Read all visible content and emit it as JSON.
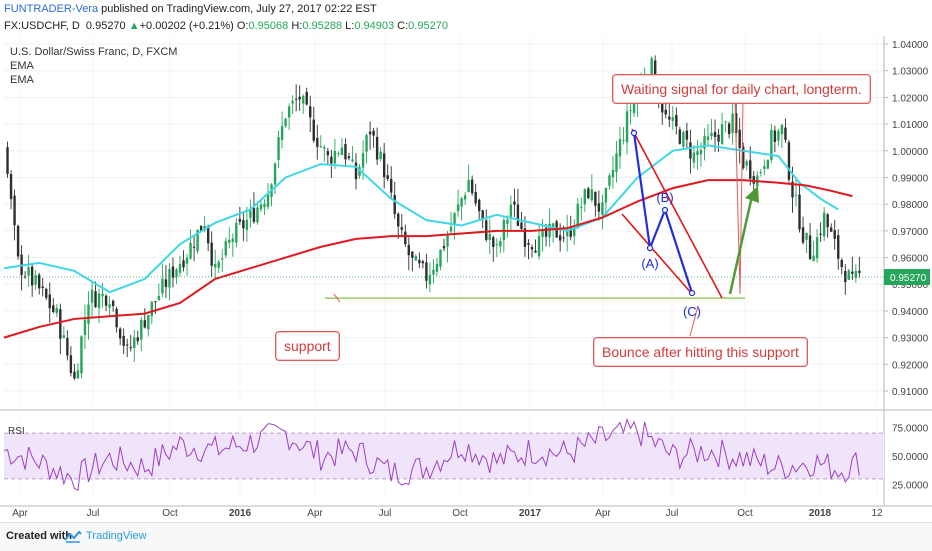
{
  "header": {
    "author": "FUNTRADER-Vera",
    "published": " published on TradingView.com, July 27, 2017 02:22 EST",
    "symbol": "FX:USDCHF, D",
    "last": "0.95270",
    "arrow": "▲",
    "change": "+0.00202 (+0.21%)",
    "o_label": "O:",
    "o_value": "0.95068",
    "h_label": "H:",
    "h_value": "0.95288",
    "l_label": "L:",
    "l_value": "0.94903",
    "c_label": "C:",
    "c_value": "0.95270"
  },
  "legend": {
    "title": "U.S. Dollar/Swiss Franc, D, FXCM",
    "ema1": "EMA",
    "ema2": "EMA",
    "rsi": "RSI"
  },
  "annotations": {
    "signal": "Waiting signal for daily chart, longterm.",
    "support": "support",
    "bounce": "Bounce after hitting this support",
    "wave_a": "(A)",
    "wave_b": "(B)",
    "wave_c": "(C)"
  },
  "colors": {
    "candle_up": "#26a65b",
    "candle_down": "#2e2e2e",
    "ema_fast": "#3fd7e6",
    "ema_slow": "#e0191f",
    "support_line": "#9ccc65",
    "wave": "#1f2ed8",
    "arrow": "#4f9a36",
    "rsi_line": "#9c3fc4",
    "rsi_band": "#f0e4fa"
  },
  "chart_data": [
    {
      "type": "candlestick",
      "title": "U.S. Dollar/Swiss Franc, D, FXCM",
      "x_ticks": [
        "Apr",
        "Jul",
        "Oct",
        "2016",
        "Apr",
        "Jul",
        "Oct",
        "2017",
        "Apr",
        "Jul",
        "Oct",
        "2018",
        "12"
      ],
      "y_ticks": [
        "0.91000",
        "0.92000",
        "0.93000",
        "0.94000",
        "0.95000",
        "0.96000",
        "0.97000",
        "0.98000",
        "0.99000",
        "1.00000",
        "1.01000",
        "1.02000",
        "1.03000",
        "1.04000"
      ],
      "ylim": [
        0.905,
        1.041
      ],
      "last_price": "0.95270",
      "close_path": [
        [
          0,
          1.002
        ],
        [
          4,
          0.958
        ],
        [
          10,
          0.948
        ],
        [
          15,
          0.938
        ],
        [
          20,
          0.914
        ],
        [
          24,
          0.945
        ],
        [
          30,
          0.946
        ],
        [
          35,
          0.924
        ],
        [
          40,
          0.937
        ],
        [
          43,
          0.944
        ],
        [
          48,
          0.955
        ],
        [
          52,
          0.962
        ],
        [
          57,
          0.974
        ],
        [
          60,
          0.954
        ],
        [
          65,
          0.968
        ],
        [
          70,
          0.975
        ],
        [
          75,
          0.985
        ],
        [
          80,
          1.014
        ],
        [
          84,
          1.02
        ],
        [
          88,
          1.007
        ],
        [
          92,
          0.997
        ],
        [
          96,
          1.002
        ],
        [
          100,
          0.99
        ],
        [
          104,
          1.008
        ],
        [
          108,
          0.993
        ],
        [
          112,
          0.97
        ],
        [
          116,
          0.958
        ],
        [
          120,
          0.953
        ],
        [
          124,
          0.962
        ],
        [
          128,
          0.975
        ],
        [
          132,
          0.989
        ],
        [
          136,
          0.972
        ],
        [
          140,
          0.962
        ],
        [
          144,
          0.98
        ],
        [
          148,
          0.968
        ],
        [
          152,
          0.965
        ],
        [
          156,
          0.97
        ],
        [
          160,
          0.968
        ],
        [
          163,
          0.977
        ],
        [
          166,
          0.985
        ],
        [
          170,
          0.977
        ],
        [
          174,
          0.998
        ],
        [
          178,
          1.016
        ],
        [
          182,
          1.028
        ],
        [
          184,
          1.031
        ],
        [
          188,
          1.012
        ],
        [
          192,
          1.006
        ],
        [
          196,
          0.998
        ],
        [
          200,
          1.003
        ],
        [
          204,
          1.008
        ],
        [
          207,
          1.01
        ],
        [
          210,
          0.996
        ],
        [
          214,
          0.99
        ],
        [
          218,
          1.004
        ],
        [
          221,
          1.008
        ],
        [
          224,
          0.985
        ],
        [
          227,
          0.969
        ],
        [
          229,
          0.962
        ],
        [
          231,
          0.967
        ],
        [
          233,
          0.975
        ],
        [
          235,
          0.968
        ],
        [
          238,
          0.957
        ],
        [
          241,
          0.95
        ],
        [
          243,
          0.953
        ]
      ],
      "series": [
        {
          "name": "EMA",
          "points": [
            [
              0,
              0.956
            ],
            [
              10,
              0.958
            ],
            [
              20,
              0.955
            ],
            [
              30,
              0.947
            ],
            [
              40,
              0.952
            ],
            [
              50,
              0.965
            ],
            [
              60,
              0.973
            ],
            [
              70,
              0.978
            ],
            [
              80,
              0.99
            ],
            [
              90,
              0.995
            ],
            [
              100,
              0.994
            ],
            [
              110,
              0.982
            ],
            [
              120,
              0.974
            ],
            [
              130,
              0.972
            ],
            [
              140,
              0.976
            ],
            [
              150,
              0.973
            ],
            [
              160,
              0.97
            ],
            [
              170,
              0.975
            ],
            [
              180,
              0.99
            ],
            [
              190,
              1.0
            ],
            [
              200,
              1.002
            ],
            [
              210,
              1.0
            ],
            [
              220,
              0.998
            ],
            [
              226,
              0.988
            ],
            [
              232,
              0.982
            ],
            [
              237,
              0.978
            ]
          ]
        },
        {
          "name": "EMA",
          "points": [
            [
              0,
              0.93
            ],
            [
              10,
              0.934
            ],
            [
              20,
              0.937
            ],
            [
              30,
              0.938
            ],
            [
              40,
              0.939
            ],
            [
              50,
              0.943
            ],
            [
              60,
              0.952
            ],
            [
              70,
              0.956
            ],
            [
              80,
              0.96
            ],
            [
              90,
              0.964
            ],
            [
              100,
              0.967
            ],
            [
              110,
              0.968
            ],
            [
              120,
              0.968
            ],
            [
              130,
              0.969
            ],
            [
              140,
              0.97
            ],
            [
              150,
              0.97
            ],
            [
              160,
              0.971
            ],
            [
              170,
              0.975
            ],
            [
              180,
              0.981
            ],
            [
              190,
              0.986
            ],
            [
              200,
              0.989
            ],
            [
              210,
              0.989
            ],
            [
              220,
              0.988
            ],
            [
              228,
              0.987
            ],
            [
              235,
              0.985
            ],
            [
              241,
              0.983
            ]
          ]
        }
      ]
    },
    {
      "type": "line",
      "title": "RSI",
      "y_ticks": [
        "25.0000",
        "50.0000",
        "75.0000"
      ],
      "ylim": [
        15,
        85
      ],
      "band": [
        30,
        70
      ],
      "rsi_path": [
        [
          0,
          55
        ],
        [
          10,
          45
        ],
        [
          20,
          30
        ],
        [
          30,
          48
        ],
        [
          40,
          40
        ],
        [
          50,
          60
        ],
        [
          60,
          55
        ],
        [
          70,
          62
        ],
        [
          80,
          70
        ],
        [
          90,
          50
        ],
        [
          100,
          55
        ],
        [
          110,
          35
        ],
        [
          120,
          40
        ],
        [
          130,
          60
        ],
        [
          140,
          45
        ],
        [
          150,
          55
        ],
        [
          160,
          52
        ],
        [
          170,
          65
        ],
        [
          180,
          72
        ],
        [
          190,
          50
        ],
        [
          200,
          55
        ],
        [
          210,
          48
        ],
        [
          220,
          40
        ],
        [
          230,
          45
        ],
        [
          238,
          38
        ],
        [
          243,
          45
        ]
      ]
    }
  ]
}
